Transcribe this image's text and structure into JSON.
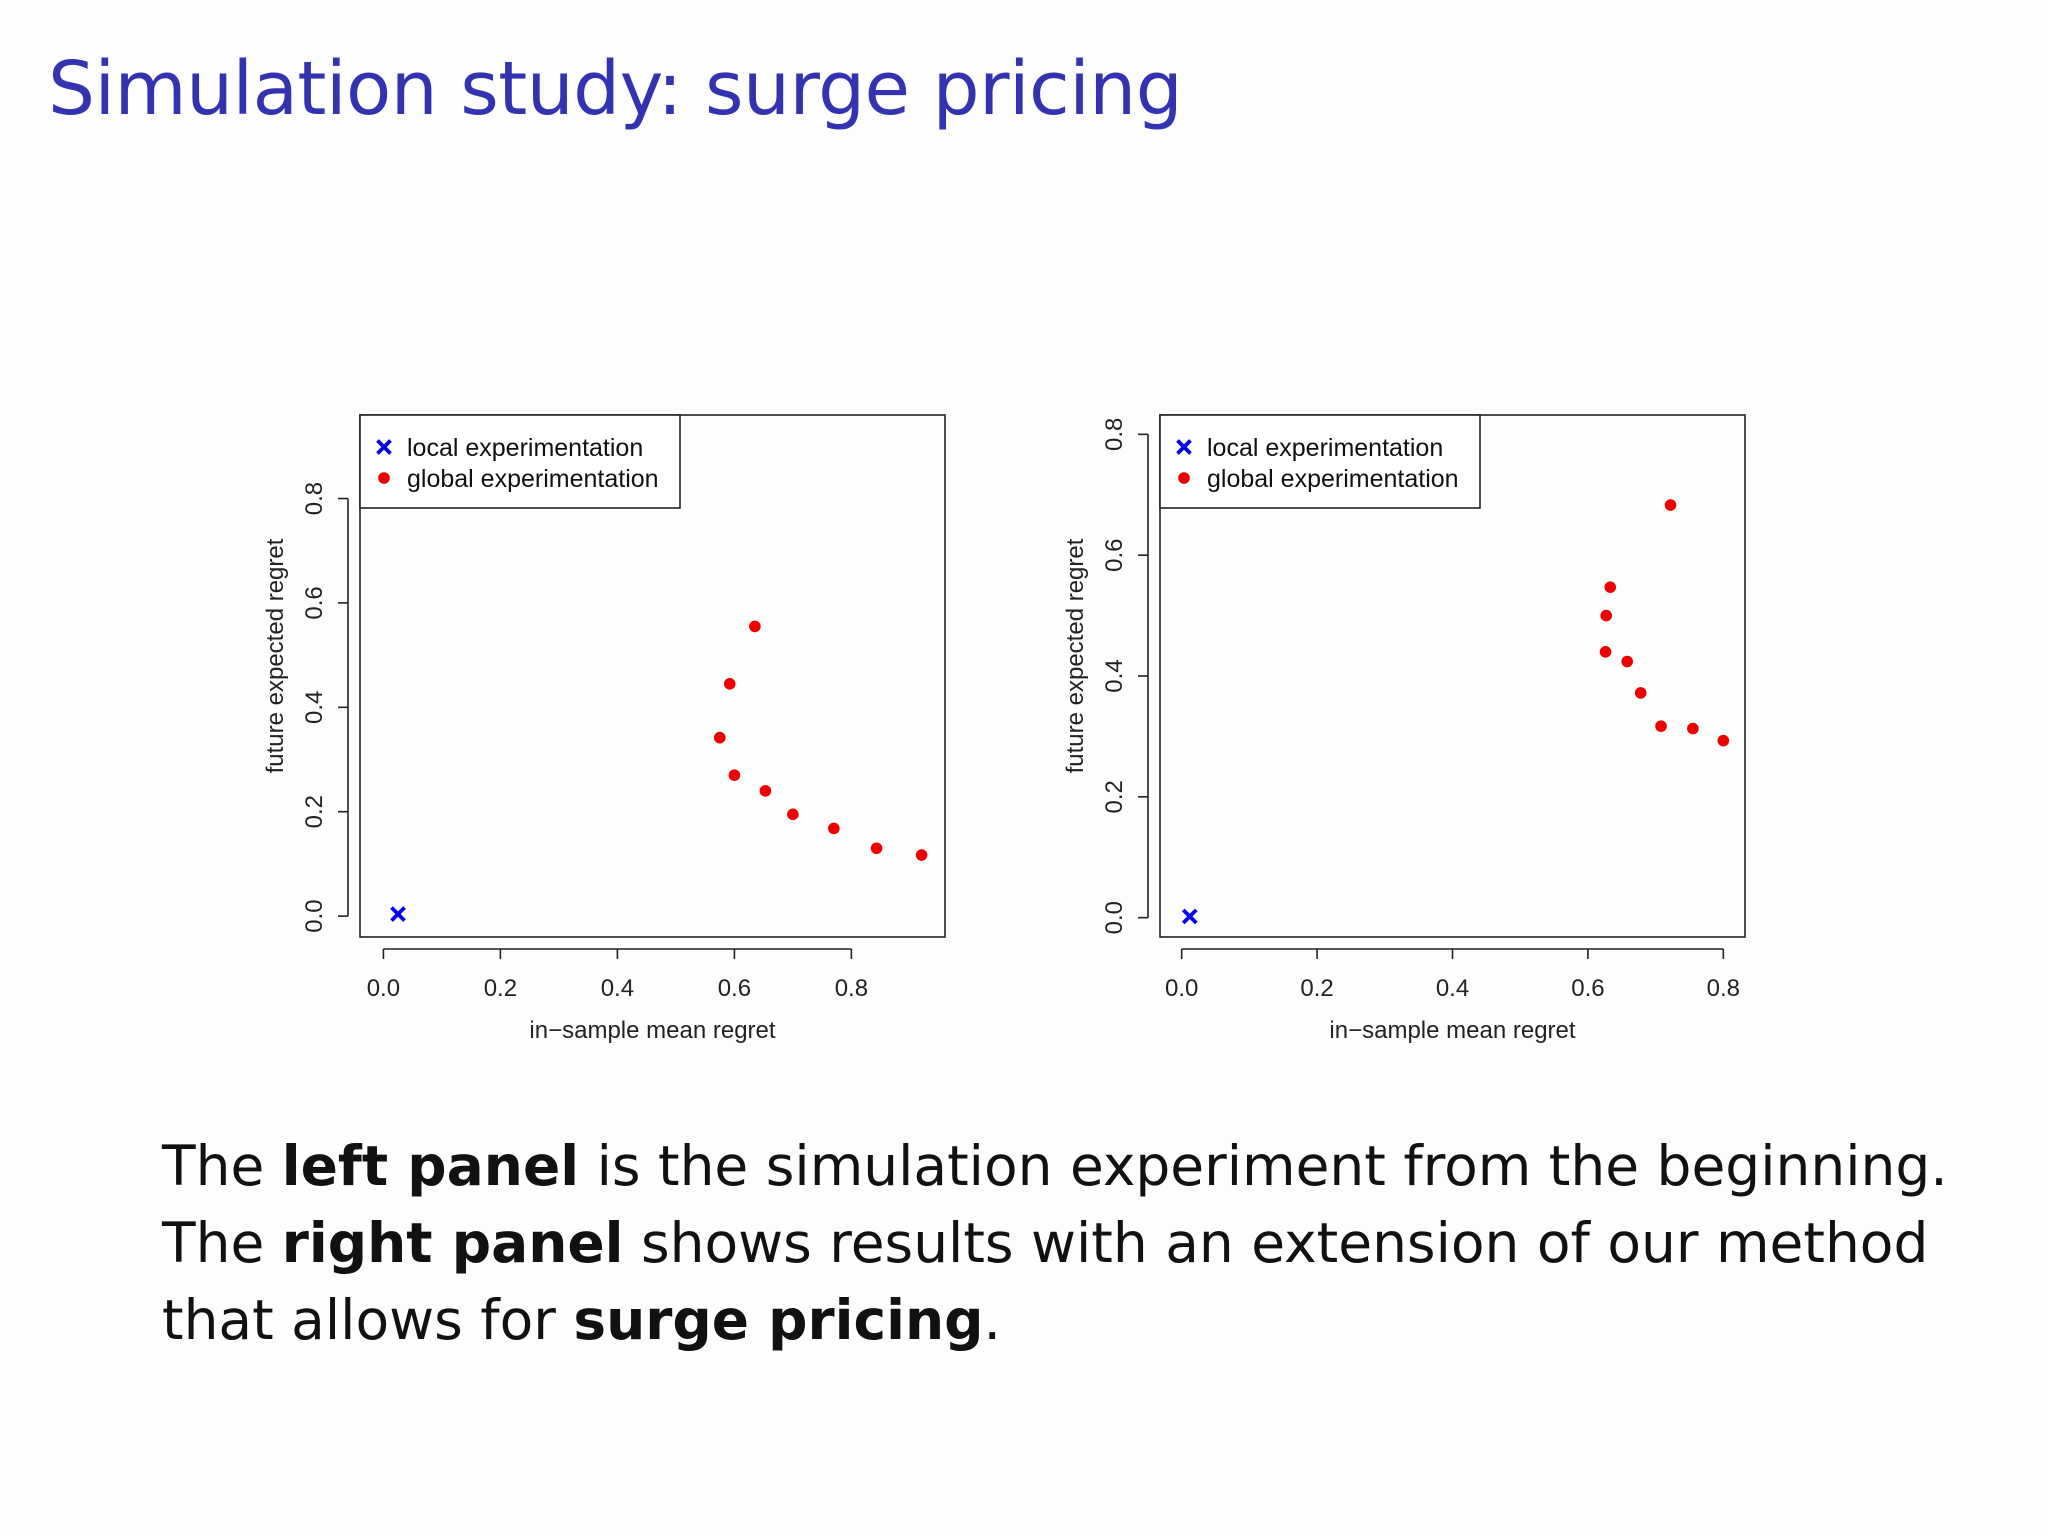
{
  "slide": {
    "title": "Simulation study: surge pricing",
    "paragraph": {
      "line1": {
        "pre": "The ",
        "bold": "left panel",
        "post": " is the simulation experiment from the beginning."
      },
      "line2": {
        "pre": "The ",
        "bold": "right panel",
        "post": " shows results with an extension of our method"
      },
      "line3": {
        "pre": "that allows for ",
        "bold": "surge pricing",
        "post": "."
      }
    }
  },
  "colors": {
    "title": "#3333b2",
    "local": "#0000ee",
    "global": "#ee0000",
    "axis": "#222222"
  },
  "chart_data": [
    {
      "type": "scatter",
      "title": "",
      "xlabel": "in−sample mean regret",
      "ylabel": "future expected regret",
      "xlim": [
        -0.04,
        0.96
      ],
      "ylim": [
        -0.04,
        0.96
      ],
      "xticks": [
        0.0,
        0.2,
        0.4,
        0.6,
        0.8
      ],
      "yticks": [
        0.0,
        0.2,
        0.4,
        0.6,
        0.8
      ],
      "xtick_labels": [
        "0.0",
        "0.2",
        "0.4",
        "0.6",
        "0.8"
      ],
      "ytick_labels": [
        "0.0",
        "0.2",
        "0.4",
        "0.6",
        "0.8"
      ],
      "grid": false,
      "legend": "top-left",
      "series": [
        {
          "name": "local experimentation",
          "marker": "x",
          "points": [
            [
              0.025,
              0.004
            ]
          ]
        },
        {
          "name": "global experimentation",
          "marker": "dot",
          "points": [
            [
              0.635,
              0.555
            ],
            [
              0.592,
              0.445
            ],
            [
              0.575,
              0.342
            ],
            [
              0.6,
              0.27
            ],
            [
              0.653,
              0.24
            ],
            [
              0.7,
              0.195
            ],
            [
              0.77,
              0.168
            ],
            [
              0.843,
              0.13
            ],
            [
              0.92,
              0.117
            ]
          ]
        }
      ]
    },
    {
      "type": "scatter",
      "title": "",
      "xlabel": "in−sample mean regret",
      "ylabel": "future expected regret",
      "xlim": [
        -0.032,
        0.832
      ],
      "ylim": [
        -0.032,
        0.832
      ],
      "xticks": [
        0.0,
        0.2,
        0.4,
        0.6,
        0.8
      ],
      "yticks": [
        0.0,
        0.2,
        0.4,
        0.6,
        0.8
      ],
      "xtick_labels": [
        "0.0",
        "0.2",
        "0.4",
        "0.6",
        "0.8"
      ],
      "ytick_labels": [
        "0.0",
        "0.2",
        "0.4",
        "0.6",
        "0.8"
      ],
      "grid": false,
      "legend": "top-left",
      "series": [
        {
          "name": "local experimentation",
          "marker": "x",
          "points": [
            [
              0.012,
              0.002
            ]
          ]
        },
        {
          "name": "global experimentation",
          "marker": "dot",
          "points": [
            [
              0.722,
              0.683
            ],
            [
              0.633,
              0.547
            ],
            [
              0.627,
              0.5
            ],
            [
              0.626,
              0.44
            ],
            [
              0.658,
              0.424
            ],
            [
              0.678,
              0.372
            ],
            [
              0.708,
              0.317
            ],
            [
              0.755,
              0.313
            ],
            [
              0.8,
              0.293
            ]
          ]
        }
      ]
    }
  ]
}
